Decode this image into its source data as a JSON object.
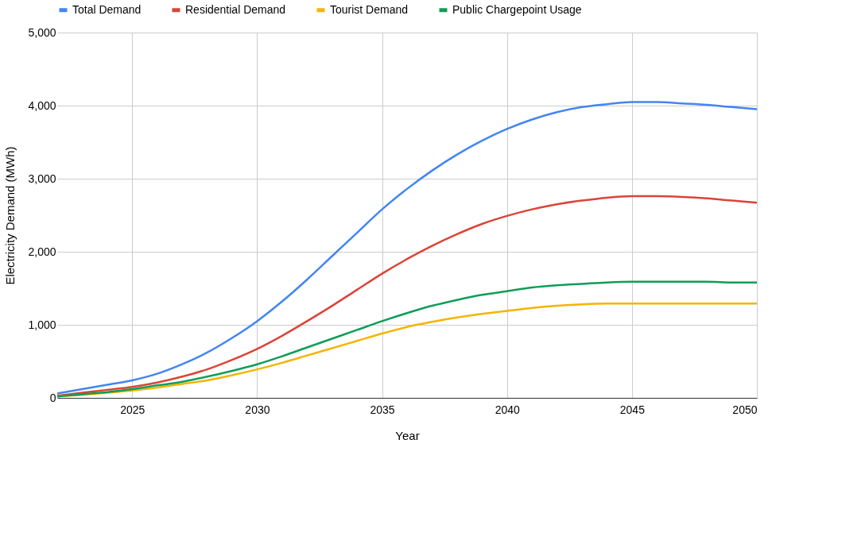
{
  "chart_data": {
    "type": "line",
    "xlabel": "Year",
    "ylabel": "Electricity Demand (MWh)",
    "x": [
      2022,
      2023,
      2024,
      2025,
      2026,
      2027,
      2028,
      2029,
      2030,
      2031,
      2032,
      2033,
      2034,
      2035,
      2036,
      2037,
      2038,
      2039,
      2040,
      2041,
      2042,
      2043,
      2044,
      2045,
      2046,
      2047,
      2048,
      2049,
      2050
    ],
    "series": [
      {
        "name": "Total Demand",
        "color": "#4285f4",
        "values": [
          60,
          120,
          180,
          240,
          330,
          460,
          620,
          820,
          1050,
          1320,
          1620,
          1940,
          2260,
          2580,
          2860,
          3110,
          3330,
          3520,
          3680,
          3810,
          3910,
          3980,
          4020,
          4050,
          4050,
          4030,
          4010,
          3980,
          3950
        ]
      },
      {
        "name": "Residential Demand",
        "color": "#db4437",
        "values": [
          30,
          70,
          110,
          150,
          210,
          290,
          390,
          520,
          670,
          850,
          1050,
          1260,
          1480,
          1700,
          1900,
          2080,
          2240,
          2380,
          2490,
          2580,
          2650,
          2700,
          2740,
          2760,
          2760,
          2750,
          2730,
          2700,
          2670
        ]
      },
      {
        "name": "Tourist Demand",
        "color": "#f4b400",
        "values": [
          20,
          40,
          70,
          100,
          140,
          190,
          240,
          310,
          390,
          480,
          580,
          680,
          780,
          880,
          970,
          1040,
          1100,
          1150,
          1190,
          1230,
          1260,
          1280,
          1290,
          1290,
          1290,
          1290,
          1290,
          1290,
          1290
        ]
      },
      {
        "name": "Public Chargepoint Usage",
        "color": "#0f9d58",
        "values": [
          20,
          50,
          80,
          120,
          170,
          220,
          290,
          370,
          460,
          570,
          690,
          810,
          930,
          1050,
          1160,
          1260,
          1340,
          1410,
          1460,
          1510,
          1540,
          1560,
          1580,
          1590,
          1590,
          1590,
          1590,
          1580,
          1580
        ]
      }
    ],
    "xlim": [
      2022,
      2050
    ],
    "xticks": [
      2025,
      2030,
      2035,
      2040,
      2045,
      2050
    ],
    "ylim": [
      0,
      5000
    ],
    "yticks": [
      0,
      {
        "value": 1000,
        "label": "1,000"
      },
      {
        "value": 2000,
        "label": "2,000"
      },
      {
        "value": 3000,
        "label": "3,000"
      },
      {
        "value": 4000,
        "label": "4,000"
      },
      {
        "value": 5000,
        "label": "5,000"
      }
    ],
    "grid": true,
    "legend": "top",
    "marker": "none",
    "line_style": "solid"
  }
}
